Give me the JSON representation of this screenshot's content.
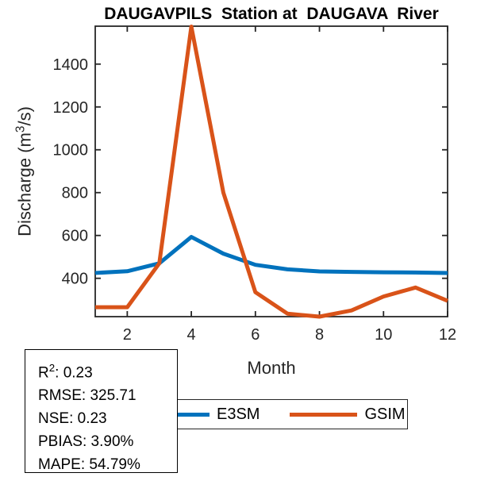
{
  "chart_data": {
    "type": "line",
    "title": "DAUGAVPILS  Station at  DAUGAVA  River",
    "xlabel": "Month",
    "ylabel": "Discharge (m^3/s)",
    "ylabel_parts": {
      "prefix": "Discharge (m",
      "sup": "3",
      "suffix": "/s)"
    },
    "x": [
      1,
      2,
      3,
      4,
      5,
      6,
      7,
      8,
      9,
      10,
      11,
      12
    ],
    "series": [
      {
        "name": "E3SM",
        "color": "#0072BD",
        "values": [
          425,
          433,
          470,
          593,
          515,
          463,
          442,
          432,
          430,
          428,
          427,
          425
        ]
      },
      {
        "name": "GSIM",
        "color": "#D95319",
        "values": [
          265,
          265,
          470,
          1575,
          800,
          335,
          235,
          221,
          250,
          315,
          357,
          295
        ]
      }
    ],
    "xlim": [
      1,
      12
    ],
    "ylim": [
      221,
      1577
    ],
    "xticks": [
      2,
      4,
      6,
      8,
      10,
      12
    ],
    "yticks": [
      400,
      600,
      800,
      1000,
      1200,
      1400
    ],
    "grid": false,
    "legend_position": "bottom",
    "axis_color": "#262626",
    "line_width": 5
  },
  "stats_box": {
    "r2_prefix": "R",
    "r2_sup": "2",
    "r2_rest": ": 0.23",
    "lines": [
      "RMSE: 325.71",
      "NSE: 0.23",
      "PBIAS: 3.90%",
      "MAPE: 54.79%"
    ]
  }
}
